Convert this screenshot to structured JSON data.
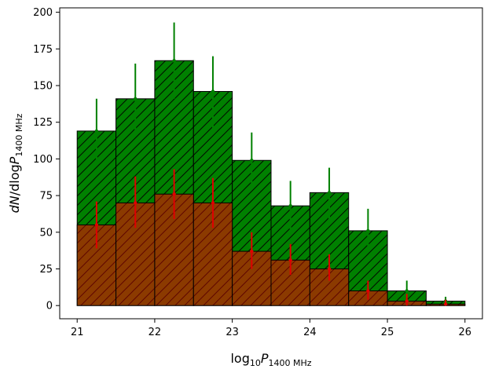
{
  "chart_data": {
    "type": "bar",
    "bin_edges": [
      21.0,
      21.5,
      22.0,
      22.5,
      23.0,
      23.5,
      24.0,
      24.5,
      25.0,
      25.5,
      26.0
    ],
    "xlim": [
      20.775,
      26.225
    ],
    "ylim": [
      -9,
      203
    ],
    "xticks": [
      21,
      22,
      23,
      24,
      25,
      26
    ],
    "yticks": [
      0,
      25,
      50,
      75,
      100,
      125,
      150,
      175,
      200
    ],
    "xlabel": {
      "prefix": "log",
      "sub": "10",
      "var": "P",
      "var_sub": "1400 MHz"
    },
    "ylabel": {
      "dn": "dN",
      "slash_log": "/dlog",
      "var": "P",
      "var_sub": "1400 MHz"
    },
    "series": [
      {
        "values": [
          119,
          141,
          167,
          146,
          99,
          68,
          77,
          51,
          10,
          3
        ],
        "errors": [
          [
            97,
            141
          ],
          [
            117,
            165
          ],
          [
            141,
            193
          ],
          [
            121,
            170
          ],
          [
            80,
            118
          ],
          [
            52,
            85
          ],
          [
            59,
            94
          ],
          [
            37,
            66
          ],
          [
            4,
            17
          ],
          [
            0,
            6
          ]
        ],
        "color": "#008000",
        "error_color": "#008000",
        "hatch": "diagonal"
      },
      {
        "values": [
          55,
          70,
          76,
          70,
          37,
          31,
          25,
          10,
          3,
          1
        ],
        "errors": [
          [
            39,
            71
          ],
          [
            53,
            88
          ],
          [
            59,
            93
          ],
          [
            53,
            87
          ],
          [
            25,
            50
          ],
          [
            21,
            42
          ],
          [
            17,
            35
          ],
          [
            4,
            17
          ],
          [
            0,
            8
          ],
          [
            0,
            4
          ]
        ],
        "color": "#8b3a00",
        "error_color": "#e00000",
        "hatch": "diagonal"
      }
    ]
  }
}
